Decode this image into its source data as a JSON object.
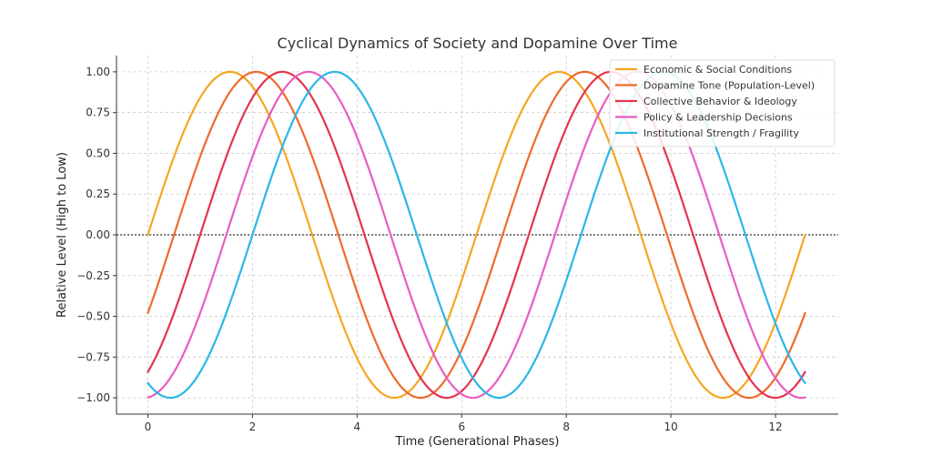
{
  "chart_data": {
    "type": "line",
    "title": "Cyclical Dynamics of Society and Dopamine Over Time",
    "xlabel": "Time (Generational Phases)",
    "ylabel": "Relative Level (High to Low)",
    "xlim": [
      -0.6,
      13.2
    ],
    "ylim": [
      -1.1,
      1.1
    ],
    "x_ticks": [
      0,
      2,
      4,
      6,
      8,
      10,
      12
    ],
    "x_tick_labels": [
      "0",
      "2",
      "4",
      "6",
      "8",
      "10",
      "12"
    ],
    "y_ticks": [
      1.0,
      0.75,
      0.5,
      0.25,
      0.0,
      -0.25,
      -0.5,
      -0.75,
      -1.0
    ],
    "y_tick_labels": [
      "1.00",
      "0.75",
      "0.50",
      "0.25",
      "0.00",
      "−0.25",
      "−0.50",
      "−0.75",
      "−1.00"
    ],
    "grid": true,
    "zero_reference_line": true,
    "legend_position": "top-right",
    "x_range": [
      0,
      12.566
    ],
    "series": [
      {
        "name": "Economic & Social Conditions",
        "color": "#F5A623",
        "function": "sin(x)"
      },
      {
        "name": "Dopamine Tone (Population-Level)",
        "color": "#EE6A2C",
        "function": "sin(x - 0.5)"
      },
      {
        "name": "Collective Behavior & Ideology",
        "color": "#E2344F",
        "function": "sin(x - 1.0)"
      },
      {
        "name": "Policy & Leadership Decisions",
        "color": "#E85DC2",
        "function": "sin(x - 1.5)"
      },
      {
        "name": "Institutional Strength / Fragility",
        "color": "#2AB7E8",
        "function": "sin(x - 2.0)"
      }
    ],
    "colors": {
      "grid": "#cccccc",
      "axis": "#333333",
      "zero_line": "#000000"
    }
  }
}
